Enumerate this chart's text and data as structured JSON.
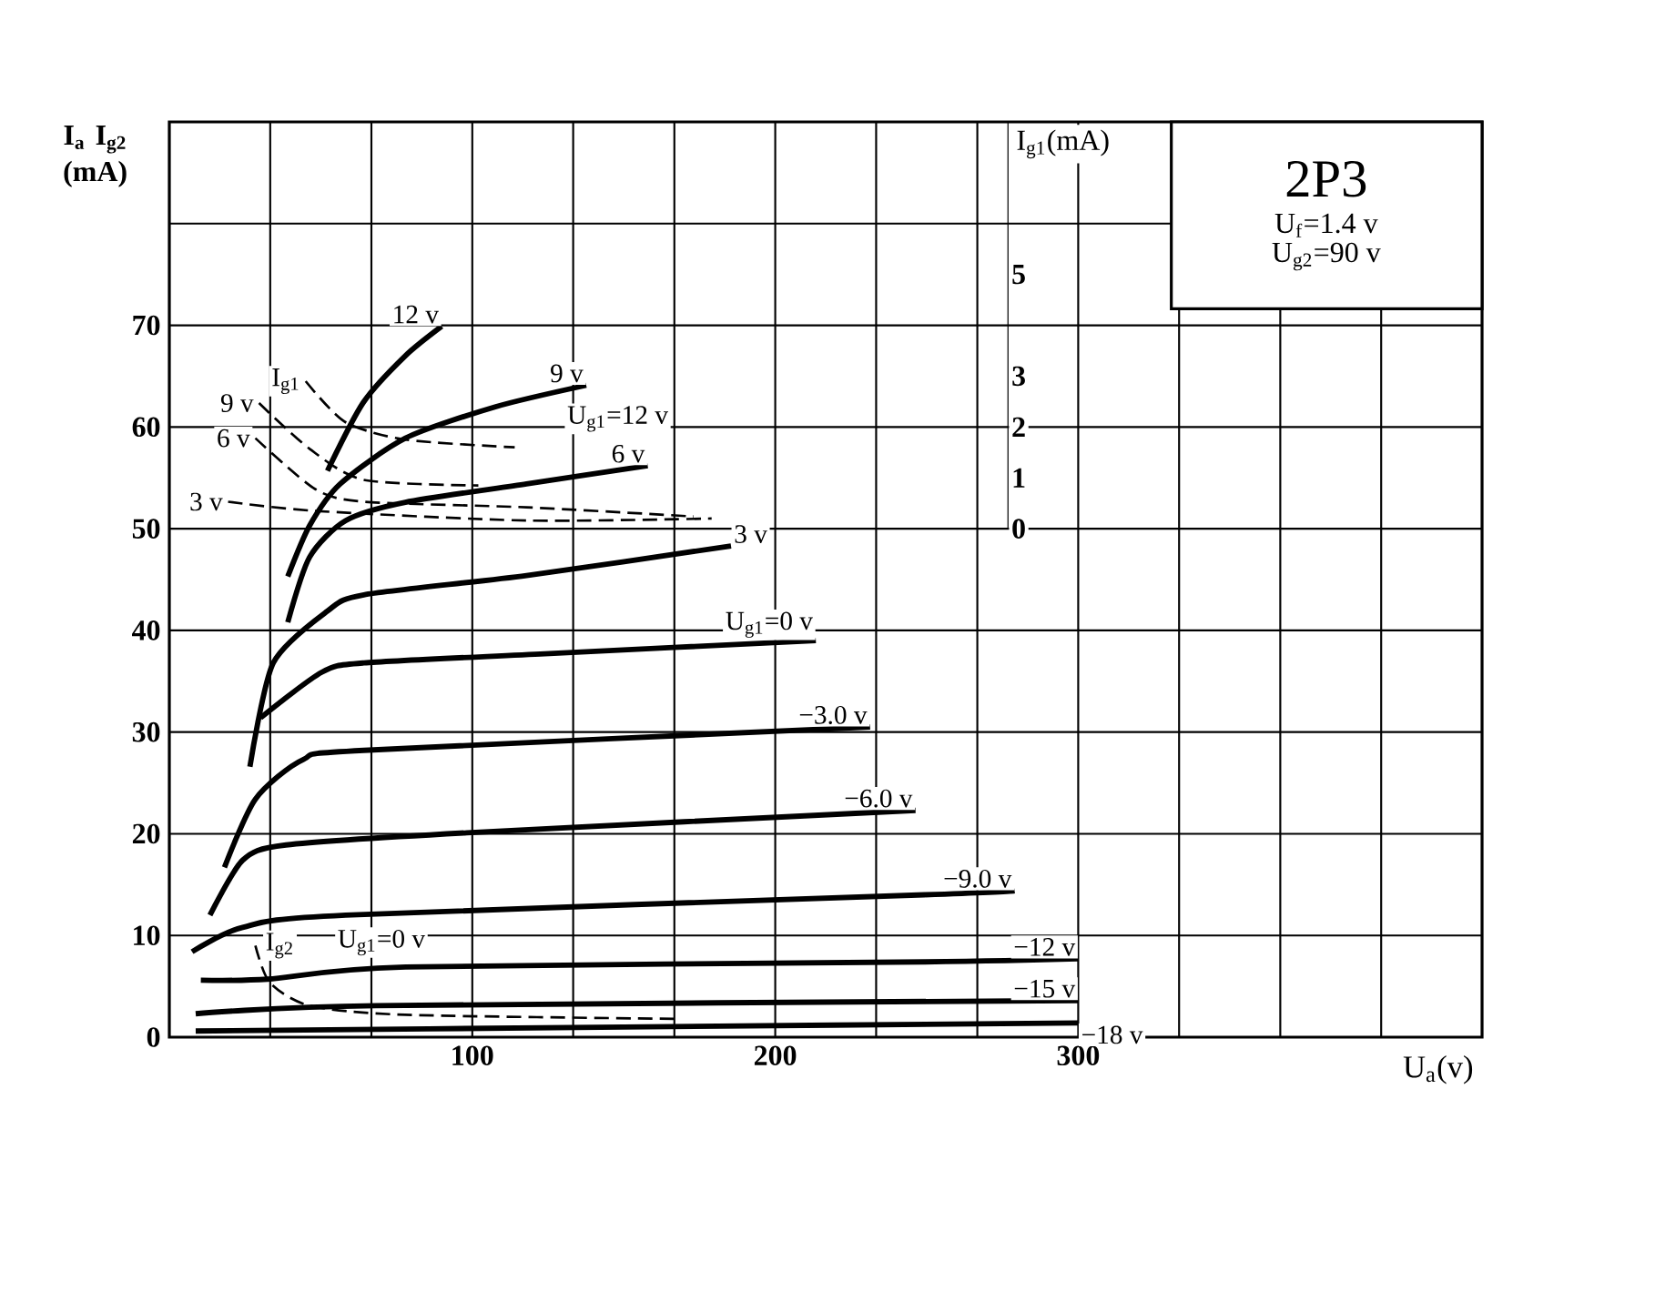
{
  "chart_data": {
    "type": "line",
    "title": "2P3",
    "xlabel": "U$_{a}$(v)",
    "ylabel": "I$_{a}$ I$_{g2}$ (mA)",
    "y2label": "I$_{g1}$(mA)",
    "xlim": [
      0,
      433.3
    ],
    "ylim": [
      0,
      90
    ],
    "y2lim": [
      -10,
      8
    ],
    "xticks": [
      {
        "value": 33.3,
        "label": null
      },
      {
        "value": 66.7,
        "label": null
      },
      100,
      {
        "value": 133.3,
        "label": null
      },
      {
        "value": 166.7,
        "label": null
      },
      200,
      {
        "value": 233.3,
        "label": null
      },
      {
        "value": 266.7,
        "label": null
      },
      300,
      {
        "value": 333.3,
        "label": null
      },
      {
        "value": 366.7,
        "label": null
      },
      {
        "value": 400,
        "label": null
      }
    ],
    "yticks": [
      0,
      10,
      20,
      30,
      40,
      50,
      60,
      70,
      {
        "value": 80,
        "label": null
      }
    ],
    "y2ticks": [
      0,
      1,
      2,
      3,
      5
    ],
    "grid": true,
    "marker": "none",
    "series": [
      {
        "name": "12 v",
        "color": "#000000",
        "line_style": "solid",
        "x": [
          52.2,
          64,
          77.9,
          89.9
        ],
        "values": [
          55.7,
          62.4,
          67.0,
          69.9
        ]
      },
      {
        "name": "9 v",
        "color": "#000000",
        "line_style": "solid",
        "x": [
          39.1,
          46.3,
          56.4,
          77.9,
          107.8,
          137.6
        ],
        "values": [
          45.3,
          50.3,
          54.4,
          58.9,
          62.0,
          64.1
        ]
      },
      {
        "name": "6 v",
        "color": "#000000",
        "line_style": "solid",
        "x": [
          39.1,
          46.3,
          58.2,
          77.9,
          117.9,
          157.9
        ],
        "values": [
          40.8,
          47.2,
          50.8,
          52.6,
          54.4,
          56.2
        ]
      },
      {
        "name": "3 v",
        "color": "#000000",
        "line_style": "solid",
        "x": [
          26.6,
          34.3,
          52.2,
          64.2,
          117.9,
          185.4
        ],
        "values": [
          26.6,
          36.8,
          41.9,
          43.5,
          45.4,
          48.3
        ]
      },
      {
        "name": "U$_{g1}$=0 v",
        "color": "#000000",
        "line_style": "solid",
        "x": [
          30.1,
          50.4,
          64.2,
          123.9,
          213.4
        ],
        "values": [
          31.4,
          35.9,
          36.8,
          37.7,
          39.0
        ]
      },
      {
        "name": "−3.0 v",
        "color": "#000000",
        "line_style": "solid",
        "x": [
          18.2,
          28.4,
          44.2,
          64.2,
          231.3
        ],
        "values": [
          16.7,
          23.4,
          27.3,
          28.2,
          30.5
        ]
      },
      {
        "name": "−6.0 v",
        "color": "#000000",
        "line_style": "solid",
        "x": [
          13.4,
          24.2,
          38.5,
          98.2,
          246.3
        ],
        "values": [
          12.0,
          17.4,
          18.9,
          20.1,
          22.3
        ]
      },
      {
        "name": "−9.0 v",
        "color": "#000000",
        "line_style": "solid",
        "x": [
          7.5,
          24.2,
          58.2,
          249.3,
          279
        ],
        "values": [
          8.4,
          10.8,
          12.0,
          14.0,
          14.4
        ]
      },
      {
        "name": "−12 v",
        "color": "#000000",
        "line_style": "solid",
        "x": [
          10.4,
          32.5,
          78,
          249.3,
          300
        ],
        "values": [
          5.6,
          5.7,
          6.9,
          7.4,
          7.7
        ]
      },
      {
        "name": "−15 v",
        "color": "#000000",
        "line_style": "solid",
        "x": [
          8.7,
          68.4,
          300
        ],
        "values": [
          2.3,
          3.1,
          3.6
        ]
      },
      {
        "name": "−18 v",
        "color": "#000000",
        "line_style": "solid",
        "x": [
          8.7,
          150,
          300
        ],
        "values": [
          0.6,
          1.0,
          1.4
        ]
      },
      {
        "name": "I$_{g2}$",
        "color": "#000000",
        "line_style": "dashed",
        "x": [
          28.4,
          33.1,
          46.3,
          77.9,
          167.5
        ],
        "values": [
          9.0,
          5.4,
          3.1,
          2.2,
          1.8
        ]
      },
      {
        "name": "I$_{g1}$",
        "color": "#000000",
        "line_style": "dashed",
        "axis": "y2",
        "x": [
          45,
          58,
          78,
          114
        ],
        "values": [
          2.9,
          2.1,
          1.75,
          1.6
        ]
      },
      {
        "name": "9 v",
        "color": "#000000",
        "line_style": "dashed",
        "axis": "y2",
        "x": [
          29.6,
          46.3,
          64.2,
          102
        ],
        "values": [
          2.47,
          1.57,
          0.96,
          0.85
        ]
      },
      {
        "name": "6 v",
        "color": "#000000",
        "line_style": "dashed",
        "axis": "y2",
        "x": [
          28.4,
          48.1,
          64.2,
          117.9,
          173
        ],
        "values": [
          1.78,
          0.78,
          0.53,
          0.42,
          0.24
        ]
      },
      {
        "name": "3 v",
        "color": "#000000",
        "line_style": "dashed",
        "axis": "y2",
        "x": [
          19.4,
          48,
          118,
          179
        ],
        "values": [
          0.53,
          0.35,
          0.16,
          0.2
        ]
      }
    ],
    "annotations": [
      "U$_{f}$=1.4 v",
      "U$_{g2}$=90 v",
      "U$_{g1}$=12 v",
      "U$_{g1}$=0 v"
    ]
  }
}
